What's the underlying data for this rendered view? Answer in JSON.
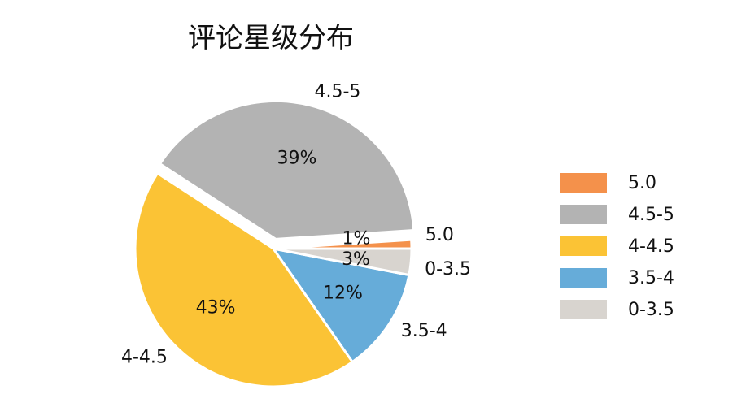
{
  "chart_data": {
    "type": "pie",
    "title": "评论星级分布",
    "slices": [
      {
        "label": "5.0",
        "value": 1,
        "pct_text": "1%",
        "color": "#F4914B",
        "explode": false
      },
      {
        "label": "4.5-5",
        "value": 39,
        "pct_text": "39%",
        "color": "#B3B3B3",
        "explode": true
      },
      {
        "label": "4-4.5",
        "value": 43,
        "pct_text": "43%",
        "color": "#FBC335",
        "explode": false
      },
      {
        "label": "3.5-4",
        "value": 12,
        "pct_text": "12%",
        "color": "#66ACD9",
        "explode": false
      },
      {
        "label": "0-3.5",
        "value": 3,
        "pct_text": "3%",
        "color": "#D8D4CF",
        "explode": false
      }
    ],
    "legend": {
      "placement": "right",
      "entries": [
        "5.0",
        "4.5-5",
        "4-4.5",
        "3.5-4",
        "0-3.5"
      ]
    },
    "start_angle_deg": 0,
    "direction": "counterclockwise"
  }
}
